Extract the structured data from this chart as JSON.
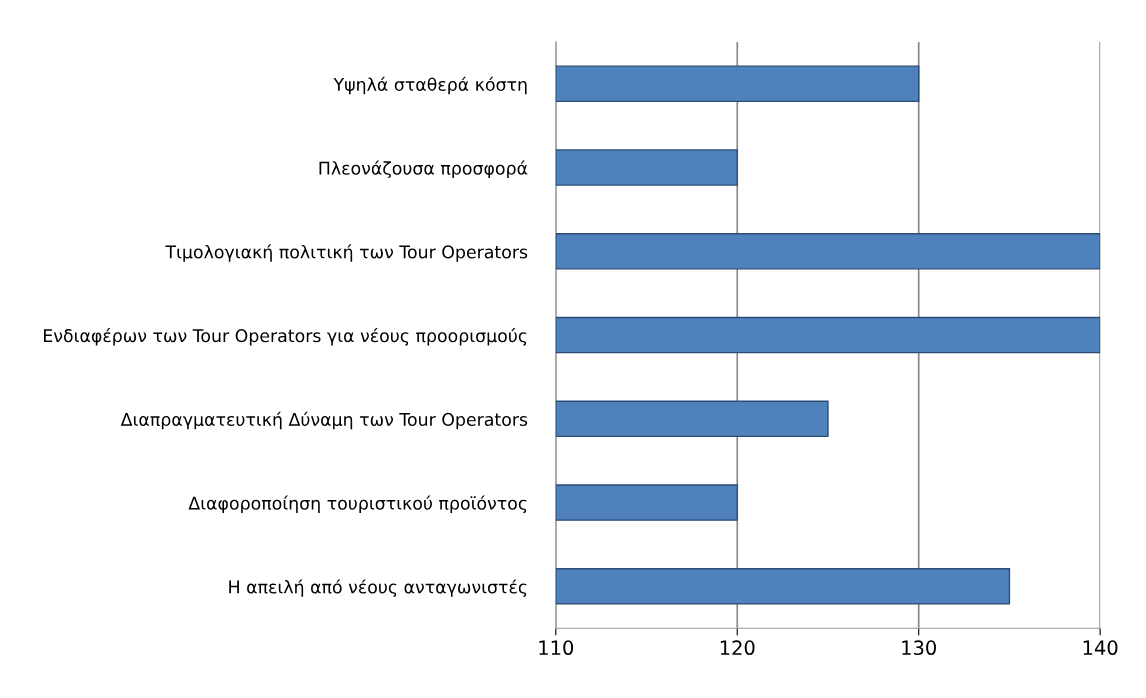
{
  "chart_data": {
    "type": "bar",
    "orientation": "horizontal",
    "categories": [
      "Υψηλά σταθερά κόστη",
      "Πλεονάζουσα προσφορά",
      "Τιμολογιακή πολιτική των Tour Operators",
      "Ενδιαφέρων των Tour Operators για νέους προορισμούς",
      "Διαπραγματευτική Δύναμη των Tour Operators",
      "Διαφοροποίηση τουριστικού προϊόντος",
      "Η απειλή από νέους ανταγωνιστές"
    ],
    "values": [
      130,
      120,
      140,
      140,
      125,
      120,
      135
    ],
    "color": "#4f81bd",
    "xlim": [
      110,
      140
    ],
    "xticks": [
      110,
      120,
      130,
      140
    ],
    "grid": "x"
  }
}
